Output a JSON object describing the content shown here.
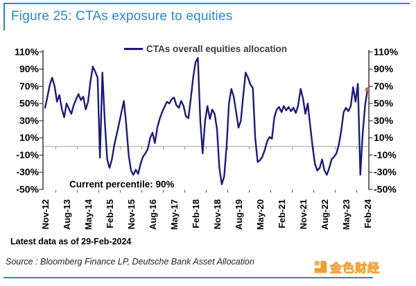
{
  "figure": {
    "title": "Figure 25: CTAs exposure to equities",
    "latest_data_note": "Latest data as of 29-Feb-2024",
    "source": "Source : Bloomberg Finance LP, Deutsche Bank Asset Allocation",
    "watermark_text": "金色财经"
  },
  "colors": {
    "accent_blue": "#2b87c4",
    "series_navy": "#1b1b78",
    "last_point_red": "#d4694a",
    "zero_line_gray": "#9a9a9a",
    "axis_black": "#1a1a1a"
  },
  "chart_data": {
    "type": "line",
    "legend": [
      "CTAs overall equities allocation"
    ],
    "legend_position": "top-center",
    "annotation": "Current percentile: 90%",
    "grid": "zero-line-only",
    "ylim": [
      -50,
      110
    ],
    "ytick_step": 20,
    "ytick_labels": [
      "110%",
      "90%",
      "70%",
      "50%",
      "30%",
      "10%",
      "-10%",
      "-30%",
      "-50%"
    ],
    "y_axis_sides": "both",
    "x_start_month": "Nov-2012",
    "x_end_month": "Feb-2024",
    "frequency": "monthly",
    "x_tick_interval_months": 9,
    "x_tick_labels": [
      "Nov-12",
      "Aug-13",
      "May-14",
      "Feb-15",
      "Nov-15",
      "Aug-16",
      "May-17",
      "Feb-18",
      "Nov-18",
      "Aug-19",
      "May-20",
      "Feb-21",
      "Nov-21",
      "Aug-22",
      "May-23",
      "Feb-24"
    ],
    "series": [
      {
        "name": "CTAs overall equities allocation",
        "color": "#1b1b78",
        "unit": "%",
        "values": [
          45,
          58,
          72,
          80,
          70,
          52,
          60,
          44,
          34,
          50,
          44,
          38,
          48,
          55,
          61,
          54,
          58,
          43,
          52,
          75,
          93,
          87,
          80,
          -13,
          86,
          30,
          -15,
          -25,
          -15,
          2,
          14,
          27,
          40,
          53,
          25,
          -10,
          -28,
          -33,
          -27,
          -32,
          -20,
          -12,
          -8,
          -3,
          10,
          16,
          4,
          22,
          32,
          40,
          46,
          52,
          50,
          55,
          57,
          48,
          45,
          53,
          47,
          35,
          33,
          55,
          80,
          98,
          103,
          30,
          -8,
          30,
          47,
          32,
          43,
          38,
          20,
          -25,
          -44,
          -35,
          0,
          50,
          67,
          58,
          40,
          22,
          30,
          60,
          86,
          80,
          72,
          68,
          10,
          -18,
          -16,
          -12,
          -4,
          6,
          11,
          9,
          34,
          43,
          46,
          40,
          47,
          42,
          46,
          41,
          45,
          39,
          48,
          67,
          56,
          38,
          50,
          25,
          0,
          -20,
          -28,
          -25,
          -15,
          -28,
          -33,
          -25,
          -15,
          -12,
          -8,
          2,
          18,
          40,
          45,
          41,
          47,
          69,
          52,
          73,
          -33,
          15,
          48,
          66
        ]
      }
    ],
    "last_point_marker": {
      "month": "Feb-24",
      "value": 66,
      "color": "#d4694a"
    }
  }
}
